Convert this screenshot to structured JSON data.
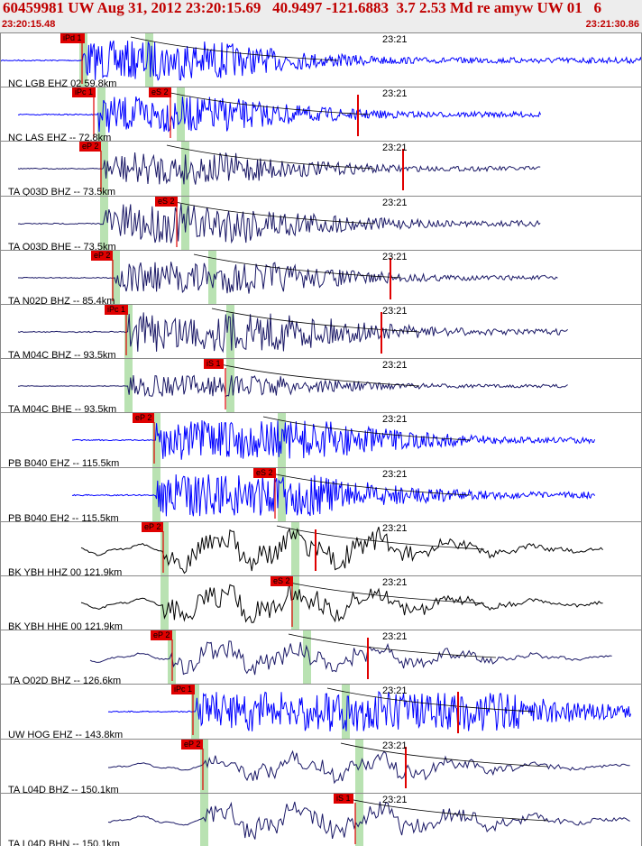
{
  "header": {
    "title": "60459981 UW Aug 31, 2012 23:20:15.69   40.9497 -121.6883  3.7 2.53 Md re amyw UW 01   6",
    "start_time": "23:20:15.48",
    "end_time": "23:21:30.86"
  },
  "colors": {
    "header_text": "#c00000",
    "pick_marker": "#e00000",
    "theoretical_pick_band": "#b9e2b2",
    "trace_blue": "#0000ff",
    "trace_navy": "#1a1866",
    "trace_black": "#000000",
    "travel_time_curve": "#000000"
  },
  "tick_label": "23:21",
  "channels": [
    {
      "label": "NC LGB EHZ 02 59.8km",
      "picks": [
        "iPd 1"
      ],
      "color": "blue"
    },
    {
      "label": "NC LAS EHZ --  72.8km",
      "picks": [
        "iPc 1",
        "eS 2"
      ],
      "color": "blue"
    },
    {
      "label": "TA Q03D BHZ --  73.5km",
      "picks": [
        "eP 2"
      ],
      "color": "navy"
    },
    {
      "label": "TA Q03D BHE --  73.5km",
      "picks": [
        "eS 2"
      ],
      "color": "navy"
    },
    {
      "label": "TA N02D BHZ --  85.4km",
      "picks": [
        "eP 2"
      ],
      "color": "navy"
    },
    {
      "label": "TA M04C BHZ --  93.5km",
      "picks": [
        "iPc 1"
      ],
      "color": "navy"
    },
    {
      "label": "TA M04C BHE --  93.5km",
      "picks": [
        "iS 1"
      ],
      "color": "navy"
    },
    {
      "label": "PB B040 EHZ --  115.5km",
      "picks": [
        "eP 2"
      ],
      "color": "blue"
    },
    {
      "label": "PB B040 EH2 --  115.5km",
      "picks": [
        "eS 2"
      ],
      "color": "blue"
    },
    {
      "label": "BK YBH HHZ 00 121.9km",
      "picks": [
        "eP 2"
      ],
      "color": "black"
    },
    {
      "label": "BK YBH HHE 00 121.9km",
      "picks": [
        "eS 2"
      ],
      "color": "black"
    },
    {
      "label": "TA Q02D BHZ --  126.6km",
      "picks": [
        "eP 2"
      ],
      "color": "navy"
    },
    {
      "label": "UW HOG EHZ --  143.8km",
      "picks": [
        "iPc 1"
      ],
      "color": "blue"
    },
    {
      "label": "TA L04D BHZ --  150.1km",
      "picks": [
        "eP 2"
      ],
      "color": "navy"
    },
    {
      "label": "TA L04D BHN --  150.1km",
      "picks": [
        "iS 1"
      ],
      "color": "navy"
    }
  ]
}
